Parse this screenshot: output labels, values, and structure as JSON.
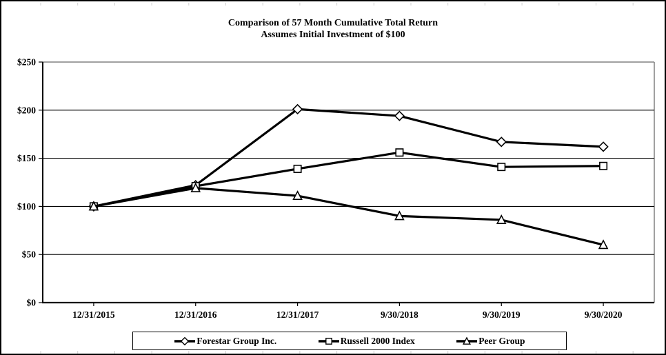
{
  "title": {
    "line1": "Comparison of 57 Month Cumulative Total Return",
    "line2": "Assumes Initial Investment of $100"
  },
  "chart_data": {
    "type": "line",
    "categories": [
      "12/31/2015",
      "12/31/2016",
      "12/31/2017",
      "9/30/2018",
      "9/30/2019",
      "9/30/2020"
    ],
    "series": [
      {
        "name": "Forestar Group Inc.",
        "marker": "diamond",
        "values": [
          100,
          122,
          201,
          194,
          167,
          162
        ]
      },
      {
        "name": "Russell 2000 Index",
        "marker": "square",
        "values": [
          100,
          121,
          139,
          156,
          141,
          142
        ]
      },
      {
        "name": "Peer Group",
        "marker": "triangle",
        "values": [
          100,
          119,
          111,
          90,
          86,
          60
        ]
      }
    ],
    "ylabel": "",
    "xlabel": "",
    "ylim": [
      0,
      250
    ],
    "y_ticks": [
      "$0",
      "$50",
      "$100",
      "$150",
      "$200",
      "$250"
    ],
    "y_tick_values": [
      0,
      50,
      100,
      150,
      200,
      250
    ],
    "grid": true,
    "legend_position": "bottom",
    "colors": {
      "line": "#000000",
      "marker_fill": "#ffffff",
      "grid": "#000000",
      "top_right_border": "#808080",
      "text": "#000000"
    }
  }
}
